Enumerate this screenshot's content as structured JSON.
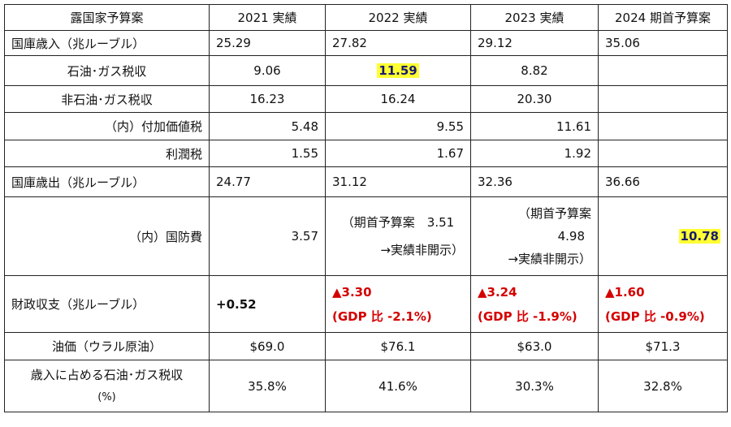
{
  "header": {
    "row_label": "露国家予算案",
    "col_2021": "2021 実績",
    "col_2022": "2022 実績",
    "col_2023": "2023 実績",
    "col_2024": "2024 期首予算案"
  },
  "revenue": {
    "label": "国庫歳入（兆ルーブル）",
    "v2021": "25.29",
    "v2022": "27.82",
    "v2023": "29.12",
    "v2024": "35.06"
  },
  "oil_gas_tax": {
    "label": "石油･ガス税収",
    "v2021": "9.06",
    "v2022": "11.59",
    "v2023": "8.82",
    "v2024": ""
  },
  "non_oil_gas_tax": {
    "label": "非石油･ガス税収",
    "v2021": "16.23",
    "v2022": "16.24",
    "v2023": "20.30",
    "v2024": ""
  },
  "vat": {
    "label": "（内）付加価値税",
    "v2021": "5.48",
    "v2022": "9.55",
    "v2023": "11.61",
    "v2024": ""
  },
  "profit_tax": {
    "label": "利潤税",
    "v2021": "1.55",
    "v2022": "1.67",
    "v2023": "1.92",
    "v2024": ""
  },
  "expenditure": {
    "label": "国庫歳出（兆ルーブル）",
    "v2021": "24.77",
    "v2022": "31.12",
    "v2023": "32.36",
    "v2024": "36.66"
  },
  "defense": {
    "label": "（内）国防費",
    "v2021": "3.57",
    "v2022_line1": "（期首予算案　3.51",
    "v2022_line2": "→実績非開示）",
    "v2023_line1": "（期首予算案",
    "v2023_line2": "4.98",
    "v2023_line3": "→実績非開示）",
    "v2024": "10.78"
  },
  "fiscal_balance": {
    "label": "財政収支（兆ルーブル）",
    "v2021": "+0.52",
    "v2022_line1": "▲3.30",
    "v2022_line2": "(GDP 比 -2.1%)",
    "v2023_line1": "▲3.24",
    "v2023_line2": "(GDP 比 -1.9%)",
    "v2024_line1": "▲1.60",
    "v2024_line2": "(GDP 比 -0.9%)"
  },
  "oil_price": {
    "label": "油価（ウラル原油）",
    "v2021": "$69.0",
    "v2022": "$76.1",
    "v2023": "$63.0",
    "v2024": "$71.3"
  },
  "oil_gas_share": {
    "label_line1": "歳入に占める石油･ガス税収",
    "label_line2": "(%)",
    "v2021": "35.8%",
    "v2022": "41.6%",
    "v2023": "30.3%",
    "v2024": "32.8%"
  },
  "colors": {
    "highlight": "#ffff33",
    "negative": "#d40000",
    "border": "#222222"
  }
}
